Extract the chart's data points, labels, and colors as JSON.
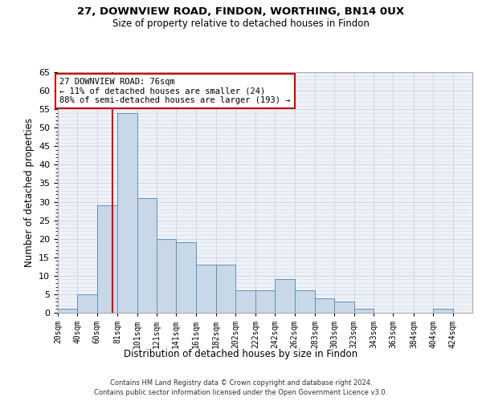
{
  "title1": "27, DOWNVIEW ROAD, FINDON, WORTHING, BN14 0UX",
  "title2": "Size of property relative to detached houses in Findon",
  "xlabel": "Distribution of detached houses by size in Findon",
  "ylabel": "Number of detached properties",
  "bin_labels": [
    "20sqm",
    "40sqm",
    "60sqm",
    "81sqm",
    "101sqm",
    "121sqm",
    "141sqm",
    "161sqm",
    "182sqm",
    "202sqm",
    "222sqm",
    "242sqm",
    "262sqm",
    "283sqm",
    "303sqm",
    "323sqm",
    "343sqm",
    "363sqm",
    "384sqm",
    "404sqm",
    "424sqm"
  ],
  "bin_edges": [
    20,
    40,
    60,
    81,
    101,
    121,
    141,
    161,
    182,
    202,
    222,
    242,
    262,
    283,
    303,
    323,
    343,
    363,
    384,
    404,
    424,
    444
  ],
  "bar_heights": [
    1,
    5,
    29,
    54,
    31,
    20,
    19,
    13,
    13,
    6,
    6,
    9,
    6,
    4,
    3,
    1,
    0,
    0,
    0,
    1,
    0
  ],
  "bar_color": "#c8d8e8",
  "bar_edge_color": "#6090b8",
  "grid_color": "#d0d8e8",
  "background_color": "#eef2f8",
  "property_line_x": 76,
  "property_line_color": "#cc0000",
  "annotation_text": "27 DOWNVIEW ROAD: 76sqm\n← 11% of detached houses are smaller (24)\n88% of semi-detached houses are larger (193) →",
  "annotation_box_color": "#cc0000",
  "ylim": [
    0,
    65
  ],
  "yticks": [
    0,
    5,
    10,
    15,
    20,
    25,
    30,
    35,
    40,
    45,
    50,
    55,
    60,
    65
  ],
  "footer1": "Contains HM Land Registry data © Crown copyright and database right 2024.",
  "footer2": "Contains public sector information licensed under the Open Government Licence v3.0."
}
